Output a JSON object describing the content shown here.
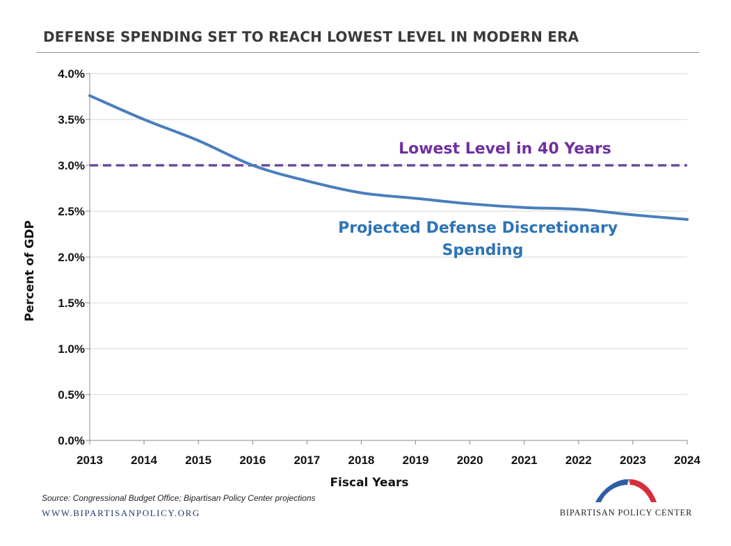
{
  "chart_data": {
    "type": "line",
    "title": "DEFENSE SPENDING SET TO REACH LOWEST LEVEL IN MODERN ERA",
    "xlabel": "Fiscal Years",
    "ylabel": "Percent of GDP",
    "x": [
      "2013",
      "2014",
      "2015",
      "2016",
      "2017",
      "2018",
      "2019",
      "2020",
      "2021",
      "2022",
      "2023",
      "2024"
    ],
    "ylim": [
      0,
      4.0
    ],
    "yticks": [
      0.0,
      0.5,
      1.0,
      1.5,
      2.0,
      2.5,
      3.0,
      3.5,
      4.0
    ],
    "ytick_labels": [
      "0.0%",
      "0.5%",
      "1.0%",
      "1.5%",
      "2.0%",
      "2.5%",
      "3.0%",
      "3.5%",
      "4.0%"
    ],
    "grid": true,
    "series": [
      {
        "label_lines": [
          "Projected Defense Discretionary",
          "Spending"
        ],
        "values": [
          3.76,
          3.5,
          3.27,
          3.0,
          2.83,
          2.7,
          2.64,
          2.58,
          2.54,
          2.52,
          2.46,
          2.41
        ],
        "color": "#4a7ebb",
        "style": "solid"
      }
    ],
    "reference_line": {
      "label": "Lowest Level in 40 Years",
      "value": 3.0,
      "color": "#6a4a9c",
      "style": "dashed"
    },
    "label_colors": {
      "series": "#2e74b5",
      "reference": "#7030a0"
    }
  },
  "footer": {
    "source": "Source: Congressional Budget Office; Bipartisan Policy Center projections",
    "website": "WWW.BIPARTISANPOLICY.ORG",
    "logo_text": "BIPARTISAN POLICY CENTER"
  },
  "logo_colors": {
    "blue": "#2e5da6",
    "red": "#d62e3c"
  }
}
